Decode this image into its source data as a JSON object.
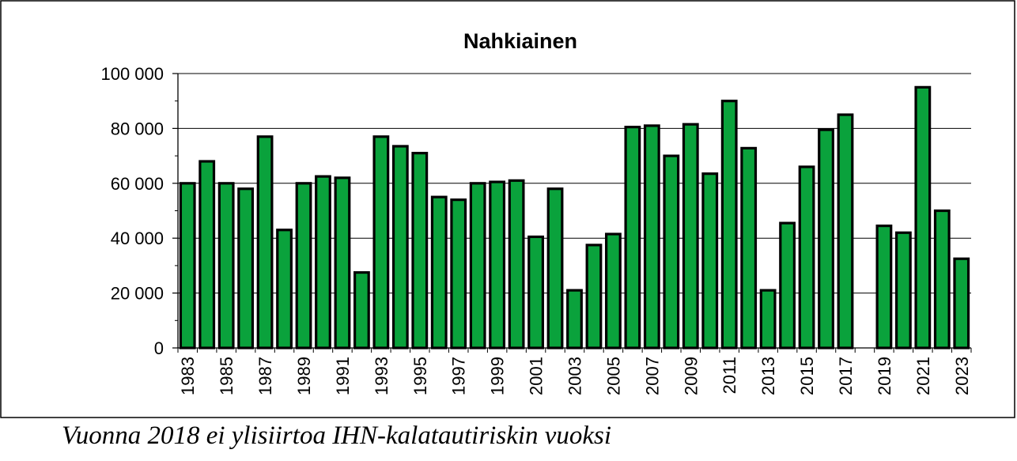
{
  "caption": "Vuonna 2018 ei ylisiirtoa IHN-kalatautiriskin vuoksi",
  "chart_data": {
    "type": "bar",
    "title": "Nahkiainen",
    "xlabel": "",
    "ylabel": "",
    "ylim": [
      0,
      100000
    ],
    "y_ticks": [
      0,
      20000,
      40000,
      60000,
      80000,
      100000
    ],
    "y_tick_labels": [
      "0",
      "20 000",
      "40 000",
      "60 000",
      "80 000",
      "100 000"
    ],
    "grid": "horizontal",
    "bar_color": "#0aa23c",
    "categories": [
      "1983",
      "1984",
      "1985",
      "1986",
      "1987",
      "1988",
      "1989",
      "1990",
      "1991",
      "1992",
      "1993",
      "1994",
      "1995",
      "1996",
      "1997",
      "1998",
      "1999",
      "2000",
      "2001",
      "2002",
      "2003",
      "2004",
      "2005",
      "2006",
      "2007",
      "2008",
      "2009",
      "2010",
      "2011",
      "2012",
      "2013",
      "2014",
      "2015",
      "2016",
      "2017",
      "2018",
      "2019",
      "2020",
      "2021",
      "2022",
      "2023"
    ],
    "tick_labels": [
      "1983",
      "",
      "1985",
      "",
      "1987",
      "",
      "1989",
      "",
      "1991",
      "",
      "1993",
      "",
      "1995",
      "",
      "1997",
      "",
      "1999",
      "",
      "2001",
      "",
      "2003",
      "",
      "2005",
      "",
      "2007",
      "",
      "2009",
      "",
      "2011",
      "",
      "2013",
      "",
      "2015",
      "",
      "2017",
      "",
      "2019",
      "",
      "2021",
      "",
      "2023"
    ],
    "values": [
      60000,
      68000,
      60000,
      58000,
      77000,
      43000,
      60000,
      62500,
      62000,
      27500,
      77000,
      73500,
      71000,
      55000,
      54000,
      60000,
      60500,
      61000,
      40500,
      58000,
      21000,
      37500,
      41500,
      80500,
      81000,
      70000,
      81500,
      63500,
      90000,
      72800,
      21000,
      45500,
      66000,
      79500,
      85000,
      null,
      44500,
      42000,
      95000,
      50000,
      32500
    ]
  }
}
